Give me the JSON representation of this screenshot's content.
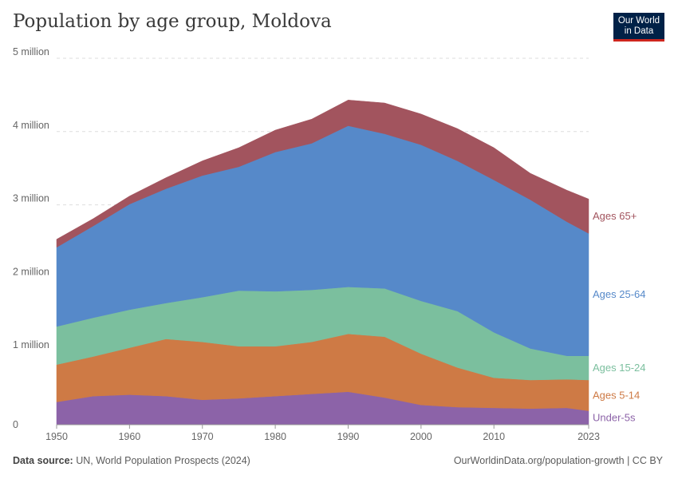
{
  "title": "Population by age group, Moldova",
  "logo": {
    "line1": "Our World",
    "line2": "in Data"
  },
  "footer": {
    "source_label": "Data source:",
    "source_text": "UN, World Population Prospects (2024)",
    "right_text": "OurWorldinData.org/population-growth | CC BY"
  },
  "chart_data": {
    "type": "area",
    "stacked": true,
    "title": "Population by age group, Moldova",
    "x": [
      1950,
      1955,
      1960,
      1965,
      1970,
      1975,
      1980,
      1985,
      1990,
      1995,
      2000,
      2005,
      2010,
      2015,
      2020,
      2023
    ],
    "xticks": [
      1950,
      1960,
      1970,
      1980,
      1990,
      2000,
      2010,
      2023
    ],
    "yticks": [
      0,
      1000000,
      2000000,
      3000000,
      4000000,
      5000000
    ],
    "ytick_labels": [
      "0",
      "1 million",
      "2 million",
      "3 million",
      "4 million",
      "5 million"
    ],
    "ylim": [
      0,
      5000000
    ],
    "xlim": [
      1950,
      2023
    ],
    "series": [
      {
        "name": "Under-5s",
        "color": "#8c63a8",
        "values": [
          310000,
          390000,
          410000,
          390000,
          340000,
          360000,
          390000,
          420000,
          450000,
          370000,
          270000,
          240000,
          230000,
          220000,
          230000,
          190000
        ]
      },
      {
        "name": "Ages 5-14",
        "color": "#ce7a45",
        "values": [
          510000,
          540000,
          640000,
          780000,
          790000,
          710000,
          680000,
          710000,
          790000,
          830000,
          700000,
          540000,
          410000,
          390000,
          390000,
          420000
        ]
      },
      {
        "name": "Ages 15-24",
        "color": "#7bbf9e",
        "values": [
          520000,
          530000,
          520000,
          490000,
          610000,
          760000,
          750000,
          710000,
          640000,
          660000,
          720000,
          770000,
          620000,
          430000,
          320000,
          330000
        ]
      },
      {
        "name": "Ages 25-64",
        "color": "#5689c9",
        "values": [
          1080000,
          1250000,
          1440000,
          1560000,
          1660000,
          1690000,
          1900000,
          2000000,
          2200000,
          2110000,
          2130000,
          2050000,
          2080000,
          2030000,
          1830000,
          1670000
        ]
      },
      {
        "name": "Ages 65+",
        "color": "#a2545e",
        "values": [
          110000,
          100000,
          110000,
          150000,
          200000,
          260000,
          300000,
          330000,
          350000,
          420000,
          420000,
          440000,
          440000,
          360000,
          430000,
          470000
        ]
      }
    ]
  }
}
